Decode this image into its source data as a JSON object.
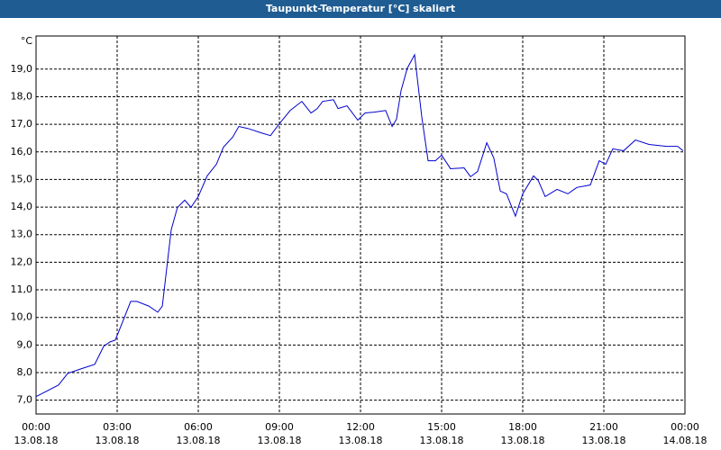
{
  "chart_data": {
    "type": "line",
    "title": "Taupunkt-Temperatur [°C] skaliert",
    "y_unit": "°C",
    "x": [
      0,
      0.83,
      1.17,
      1.67,
      2.17,
      2.5,
      2.73,
      2.93,
      3.17,
      3.5,
      3.73,
      4.17,
      4.5,
      4.67,
      5.0,
      5.23,
      5.5,
      5.73,
      6.0,
      6.33,
      6.67,
      6.93,
      7.27,
      7.5,
      7.83,
      8.33,
      8.67,
      9.0,
      9.4,
      9.83,
      10.17,
      10.4,
      10.6,
      11.0,
      11.17,
      11.5,
      11.9,
      12.17,
      12.5,
      12.93,
      13.17,
      13.33,
      13.5,
      13.73,
      14.0,
      14.27,
      14.5,
      14.77,
      15.0,
      15.33,
      15.83,
      16.07,
      16.33,
      16.67,
      16.93,
      17.17,
      17.4,
      17.73,
      18.0,
      18.4,
      18.57,
      18.83,
      19.27,
      19.67,
      20.0,
      20.5,
      20.83,
      21.07,
      21.33,
      21.73,
      22.17,
      22.67,
      23.33,
      23.73,
      23.93
    ],
    "series": [
      {
        "name": "Taupunkt",
        "color": "#0000cc",
        "values": [
          7.13,
          7.55,
          7.97,
          8.14,
          8.3,
          8.95,
          9.11,
          9.18,
          9.76,
          10.58,
          10.58,
          10.41,
          10.19,
          10.41,
          13.18,
          13.99,
          14.25,
          13.99,
          14.38,
          15.13,
          15.55,
          16.17,
          16.53,
          16.92,
          16.85,
          16.69,
          16.59,
          17.02,
          17.5,
          17.83,
          17.41,
          17.57,
          17.83,
          17.89,
          17.57,
          17.67,
          17.15,
          17.41,
          17.44,
          17.5,
          16.92,
          17.18,
          18.22,
          19.03,
          19.52,
          17.24,
          15.68,
          15.68,
          15.88,
          15.39,
          15.42,
          15.1,
          15.29,
          16.33,
          15.78,
          14.58,
          14.48,
          13.67,
          14.48,
          15.13,
          14.97,
          14.38,
          14.64,
          14.48,
          14.71,
          14.8,
          15.68,
          15.55,
          16.11,
          16.04,
          16.43,
          16.27,
          16.2,
          16.2,
          16.04
        ]
      }
    ],
    "xlim": [
      0,
      24
    ],
    "xticks": [
      {
        "value": 0,
        "label": "00:00"
      },
      {
        "value": 3,
        "label": "03:00"
      },
      {
        "value": 6,
        "label": "06:00"
      },
      {
        "value": 9,
        "label": "09:00"
      },
      {
        "value": 12,
        "label": "12:00"
      },
      {
        "value": 15,
        "label": "15:00"
      },
      {
        "value": 18,
        "label": "18:00"
      },
      {
        "value": 21,
        "label": "21:00"
      },
      {
        "value": 24,
        "label": "00:00"
      }
    ],
    "xtick_dates": [
      "13.08.18",
      "13.08.18",
      "13.08.18",
      "13.08.18",
      "13.08.18",
      "13.08.18",
      "13.08.18",
      "13.08.18",
      "14.08.18"
    ],
    "ylim": [
      6.5,
      20.2
    ],
    "yticks": [
      {
        "value": 7,
        "label": "7,0"
      },
      {
        "value": 8,
        "label": "8,0"
      },
      {
        "value": 9,
        "label": "9,0"
      },
      {
        "value": 10,
        "label": "10,0"
      },
      {
        "value": 11,
        "label": "11,0"
      },
      {
        "value": 12,
        "label": "12,0"
      },
      {
        "value": 13,
        "label": "13,0"
      },
      {
        "value": 14,
        "label": "14,0"
      },
      {
        "value": 15,
        "label": "15,0"
      },
      {
        "value": 16,
        "label": "16,0"
      },
      {
        "value": 17,
        "label": "17,0"
      },
      {
        "value": 18,
        "label": "18,0"
      },
      {
        "value": 19,
        "label": "19,0"
      }
    ],
    "grid": true
  }
}
